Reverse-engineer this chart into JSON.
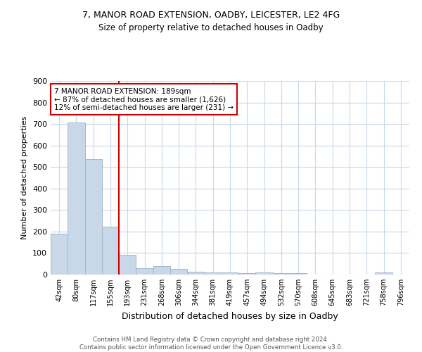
{
  "title1": "7, MANOR ROAD EXTENSION, OADBY, LEICESTER, LE2 4FG",
  "title2": "Size of property relative to detached houses in Oadby",
  "xlabel": "Distribution of detached houses by size in Oadby",
  "ylabel": "Number of detached properties",
  "footnote": "Contains HM Land Registry data © Crown copyright and database right 2024.\nContains public sector information licensed under the Open Government Licence v3.0.",
  "categories": [
    "42sqm",
    "80sqm",
    "117sqm",
    "155sqm",
    "193sqm",
    "231sqm",
    "268sqm",
    "306sqm",
    "344sqm",
    "381sqm",
    "419sqm",
    "457sqm",
    "494sqm",
    "532sqm",
    "570sqm",
    "608sqm",
    "645sqm",
    "683sqm",
    "721sqm",
    "758sqm",
    "796sqm"
  ],
  "values": [
    190,
    707,
    537,
    224,
    92,
    30,
    40,
    26,
    13,
    11,
    11,
    8,
    9,
    8,
    5,
    0,
    0,
    0,
    0,
    9,
    0
  ],
  "bar_color_normal": "#c8d8e8",
  "bar_color_edge": "#a0b8cc",
  "vline_index": 4,
  "vline_color": "#cc0000",
  "annotation_text": "7 MANOR ROAD EXTENSION: 189sqm\n← 87% of detached houses are smaller (1,626)\n12% of semi-detached houses are larger (231) →",
  "annotation_box_color": "white",
  "annotation_box_edge": "#cc0000",
  "ylim": [
    0,
    900
  ],
  "yticks": [
    0,
    100,
    200,
    300,
    400,
    500,
    600,
    700,
    800,
    900
  ],
  "background_color": "white",
  "grid_color": "#c8d8e8"
}
